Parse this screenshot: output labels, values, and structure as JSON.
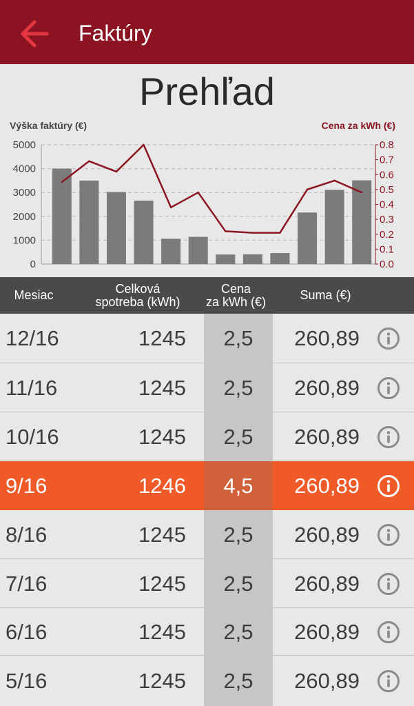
{
  "app": {
    "title": "Faktúry"
  },
  "overview": {
    "title": "Prehľad"
  },
  "chart_data": {
    "type": "bar",
    "left_axis_label": "Výška faktúry (€)",
    "right_axis_label": "Cena za kWh (€)",
    "y_left_ticks": [
      "5000",
      "4000",
      "3000",
      "2000",
      "1000",
      "0"
    ],
    "y_right_ticks": [
      "0.8",
      "0.7",
      "0.6",
      "0.5",
      "0.4",
      "0.3",
      "0.2",
      "0.1",
      "0.0"
    ],
    "ylim_left": [
      0,
      5000
    ],
    "ylim_right": [
      0,
      0.8
    ],
    "grid": true,
    "series": [
      {
        "axis": "left",
        "type": "bar",
        "values": [
          4000,
          3500,
          3020,
          2660,
          1060,
          1140,
          400,
          410,
          460,
          2160,
          3110,
          3510
        ]
      },
      {
        "axis": "right",
        "type": "line",
        "values": [
          0.55,
          0.69,
          0.62,
          0.8,
          0.38,
          0.48,
          0.22,
          0.21,
          0.21,
          0.5,
          0.56,
          0.48
        ]
      }
    ],
    "colors": {
      "bar": "#7b7b7b",
      "line": "#8c1422"
    }
  },
  "table": {
    "headers": {
      "month": "Mesiac",
      "consumption_1": "Celková",
      "consumption_2": "spotreba (kWh)",
      "price_1": "Cena",
      "price_2": "za kWh (€)",
      "sum": "Suma  (€)"
    },
    "rows": [
      {
        "month": "12/16",
        "consumption": "1245",
        "price": "2,5",
        "sum": "260,89"
      },
      {
        "month": "11/16",
        "consumption": "1245",
        "price": "2,5",
        "sum": "260,89"
      },
      {
        "month": "10/16",
        "consumption": "1245",
        "price": "2,5",
        "sum": "260,89"
      },
      {
        "month": "9/16",
        "consumption": "1246",
        "price": "4,5",
        "sum": "260,89",
        "selected": true
      },
      {
        "month": "8/16",
        "consumption": "1245",
        "price": "2,5",
        "sum": "260,89"
      },
      {
        "month": "7/16",
        "consumption": "1245",
        "price": "2,5",
        "sum": "260,89"
      },
      {
        "month": "6/16",
        "consumption": "1245",
        "price": "2,5",
        "sum": "260,89"
      },
      {
        "month": "5/16",
        "consumption": "1245",
        "price": "2,5",
        "sum": "260,89"
      }
    ]
  },
  "colors": {
    "appbar": "#8c1422",
    "selected": "#f05a28",
    "header": "#4a4a4a"
  }
}
